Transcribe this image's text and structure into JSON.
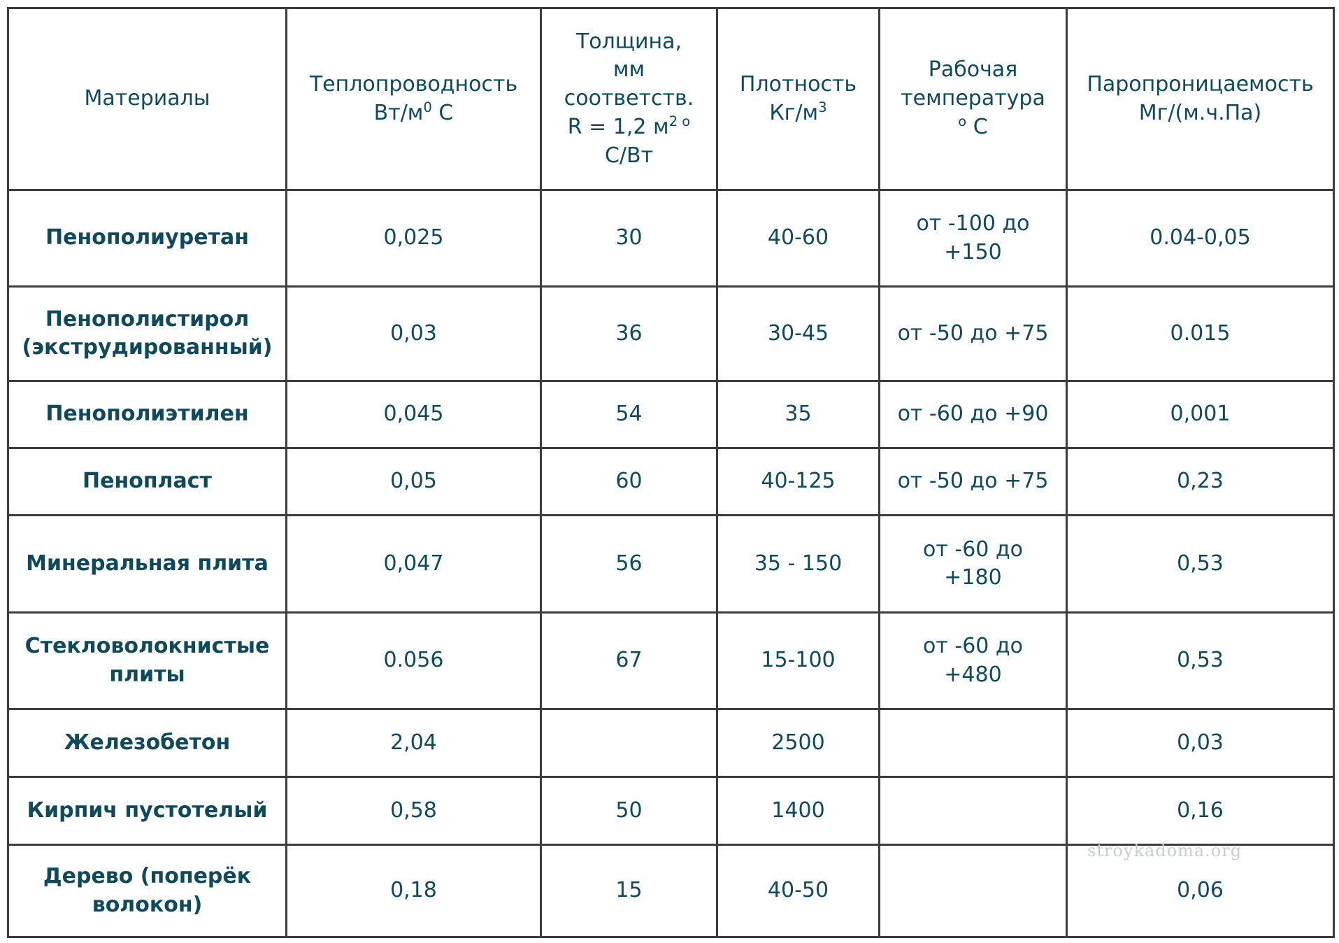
{
  "table": {
    "headers": {
      "material": "Материалы",
      "conductivity": "Теплопроводность",
      "conductivity_unit": "Вт/м",
      "conductivity_sup": "0",
      "conductivity_unit_tail": " С",
      "thickness_l1": "Толщина,",
      "thickness_l2": "мм",
      "thickness_l3": "соответств.",
      "thickness_l4": "R = 1,2 м",
      "thickness_sup": "2 о",
      "thickness_l5": "С/Вт",
      "density": "Плотность",
      "density_unit": "Кг/м",
      "density_sup": "3",
      "temperature": "Рабочая температура",
      "temperature_sup": "о",
      "temperature_unit": " С",
      "permeability": "Паропроницаемость",
      "permeability_unit": "Мг/(м.ч.Па)"
    },
    "rows": [
      {
        "material": "Пенополиуретан",
        "conductivity": "0,025",
        "thickness": "30",
        "density": "40-60",
        "temperature": "от -100 до +150",
        "permeability": "0.04-0,05"
      },
      {
        "material": "Пенополистирол (экструдированный)",
        "conductivity": "0,03",
        "thickness": "36",
        "density": "30-45",
        "temperature": "от -50 до +75",
        "permeability": "0.015"
      },
      {
        "material": "Пенополиэтилен",
        "conductivity": "0,045",
        "thickness": "54",
        "density": "35",
        "temperature": "от -60 до +90",
        "permeability": "0,001"
      },
      {
        "material": "Пенопласт",
        "conductivity": "0,05",
        "thickness": "60",
        "density": "40-125",
        "temperature": "от -50 до +75",
        "permeability": "0,23"
      },
      {
        "material": "Минеральная плита",
        "conductivity": "0,047",
        "thickness": "56",
        "density": "35 - 150",
        "temperature": "от -60 до +180",
        "permeability": "0,53"
      },
      {
        "material": "Стекловолокнистые плиты",
        "conductivity": "0.056",
        "thickness": "67",
        "density": "15-100",
        "temperature": "от -60 до +480",
        "permeability": "0,53"
      },
      {
        "material": "Железобетон",
        "conductivity": "2,04",
        "thickness": "",
        "density": "2500",
        "temperature": "",
        "permeability": "0,03"
      },
      {
        "material": "Кирпич пустотелый",
        "conductivity": "0,58",
        "thickness": "50",
        "density": "1400",
        "temperature": "",
        "permeability": "0,16"
      },
      {
        "material": "Дерево (поперёк волокон)",
        "conductivity": "0,18",
        "thickness": "15",
        "density": "40-50",
        "temperature": "",
        "permeability": "0,06"
      }
    ]
  },
  "watermark": "stroykadoma.org",
  "colors": {
    "text": "#0f4a5c",
    "border": "#3c3c3c",
    "watermark": "#c7cdd2"
  }
}
